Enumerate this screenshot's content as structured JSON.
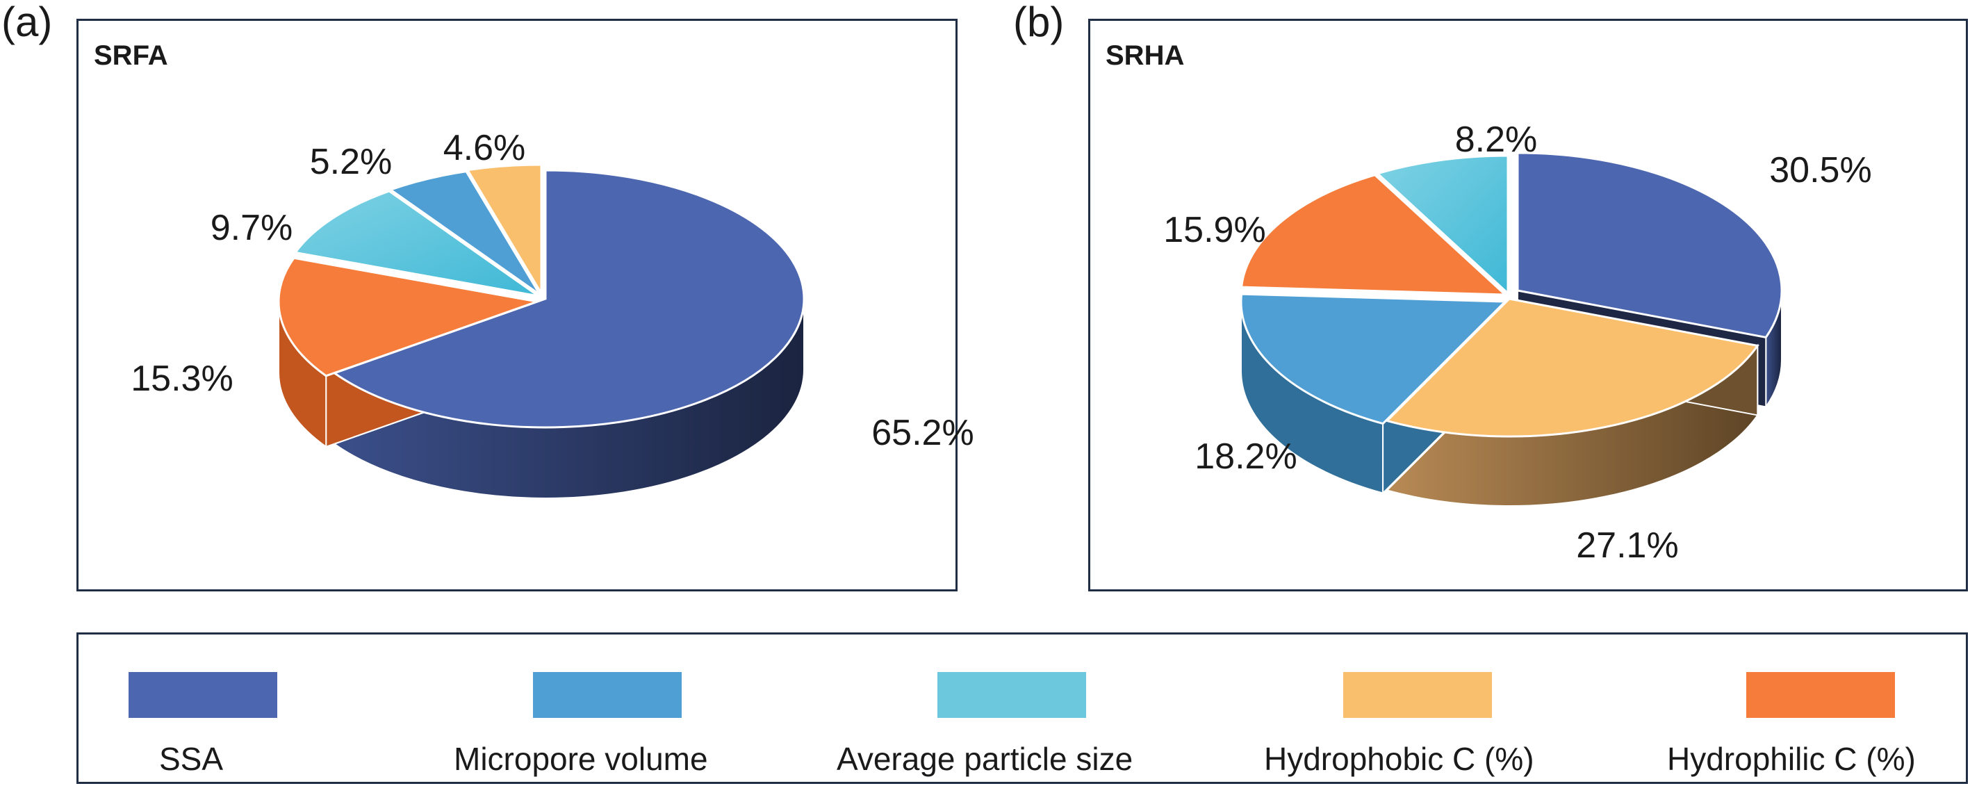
{
  "chart_data": [
    {
      "type": "pie",
      "panel_letter": "(a)",
      "title": "SRFA",
      "slices": [
        {
          "category": "SSA",
          "value": 65.2,
          "label": "65.2%",
          "color": "#4c66b0",
          "side": "#1e2845"
        },
        {
          "category": "Hydrophilic C (%)",
          "value": 15.3,
          "label": "15.3%",
          "color": "#f57c3a",
          "side": "#c2561e"
        },
        {
          "category": "Average particle size",
          "value": 9.7,
          "label": "9.7%",
          "color": "#6cc8dc",
          "side": "#2f9cb5"
        },
        {
          "category": "Micropore volume",
          "value": 5.2,
          "label": "5.2%",
          "color": "#4f9fd5",
          "side": "#2c6e9c"
        },
        {
          "category": "Hydrophobic C (%)",
          "value": 4.6,
          "label": "4.6%",
          "color": "#f9bf6c",
          "side": "#b98a45"
        }
      ]
    },
    {
      "type": "pie",
      "panel_letter": "(b)",
      "title": "SRHA",
      "slices": [
        {
          "category": "SSA",
          "value": 30.5,
          "label": "30.5%",
          "color": "#4c66b0",
          "side": "#1e2845"
        },
        {
          "category": "Hydrophobic C (%)",
          "value": 27.1,
          "label": "27.1%",
          "color": "#f9bf6c",
          "side": "#6e5230"
        },
        {
          "category": "Micropore volume",
          "value": 18.2,
          "label": "18.2%",
          "color": "#4f9fd5",
          "side": "#2f6f99"
        },
        {
          "category": "Hydrophilic C (%)",
          "value": 15.9,
          "label": "15.9%",
          "color": "#f57c3a",
          "side": "#c2561e"
        },
        {
          "category": "Average particle size",
          "value": 8.2,
          "label": "8.2%",
          "color": "#6cc8dc",
          "side": "#2f9cb5"
        }
      ]
    }
  ],
  "legend": {
    "items": [
      {
        "label": "SSA",
        "color": "#4c66b0"
      },
      {
        "label": "Micropore volume",
        "color": "#4f9fd5"
      },
      {
        "label": "Average particle size",
        "color": "#6cc8dc"
      },
      {
        "label": "Hydrophobic C (%)",
        "color": "#f9bf6c"
      },
      {
        "label": "Hydrophilic C (%)",
        "color": "#f57c3a"
      }
    ]
  }
}
